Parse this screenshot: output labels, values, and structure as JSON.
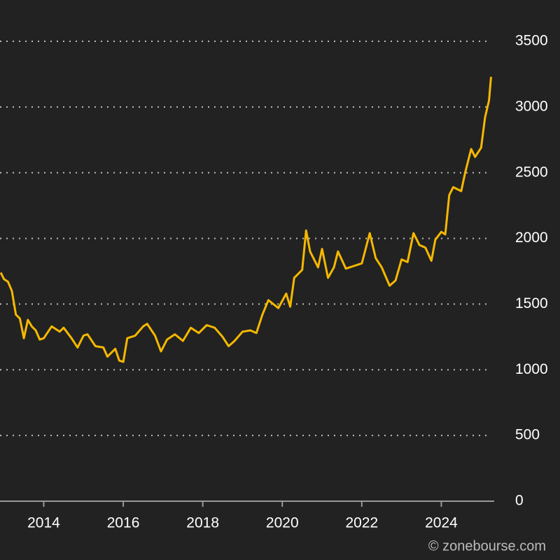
{
  "chart_data": {
    "type": "line",
    "source": "© zonebourse.com",
    "color": "#f5b800",
    "x": [
      2012.92,
      2013.0,
      2013.1,
      2013.2,
      2013.3,
      2013.4,
      2013.5,
      2013.6,
      2013.7,
      2013.8,
      2013.9,
      2014.0,
      2014.2,
      2014.4,
      2014.5,
      2014.7,
      2014.85,
      2015.0,
      2015.1,
      2015.3,
      2015.5,
      2015.6,
      2015.8,
      2015.9,
      2016.0,
      2016.1,
      2016.3,
      2016.5,
      2016.6,
      2016.8,
      2016.95,
      2017.1,
      2017.3,
      2017.5,
      2017.7,
      2017.9,
      2018.1,
      2018.3,
      2018.5,
      2018.65,
      2018.8,
      2019.0,
      2019.2,
      2019.35,
      2019.5,
      2019.65,
      2019.9,
      2020.1,
      2020.2,
      2020.3,
      2020.5,
      2020.6,
      2020.7,
      2020.9,
      2021.0,
      2021.15,
      2021.3,
      2021.4,
      2021.6,
      2021.8,
      2022.0,
      2022.2,
      2022.35,
      2022.5,
      2022.7,
      2022.85,
      2023.0,
      2023.15,
      2023.3,
      2023.45,
      2023.6,
      2023.75,
      2023.85,
      2024.0,
      2024.1,
      2024.2,
      2024.3,
      2024.5,
      2024.6,
      2024.75,
      2024.85,
      2025.0,
      2025.1,
      2025.2,
      2025.25
    ],
    "values": [
      1740,
      1690,
      1670,
      1600,
      1420,
      1390,
      1240,
      1380,
      1330,
      1300,
      1230,
      1240,
      1330,
      1290,
      1320,
      1240,
      1170,
      1260,
      1270,
      1180,
      1170,
      1100,
      1160,
      1070,
      1060,
      1240,
      1260,
      1330,
      1350,
      1260,
      1140,
      1230,
      1270,
      1220,
      1320,
      1280,
      1340,
      1320,
      1250,
      1180,
      1220,
      1290,
      1300,
      1280,
      1420,
      1530,
      1470,
      1580,
      1480,
      1700,
      1760,
      2060,
      1900,
      1780,
      1920,
      1700,
      1780,
      1900,
      1770,
      1790,
      1810,
      2040,
      1850,
      1780,
      1640,
      1680,
      1840,
      1820,
      2040,
      1950,
      1930,
      1830,
      1990,
      2050,
      2030,
      2330,
      2390,
      2360,
      2500,
      2680,
      2620,
      2690,
      2920,
      3050,
      3230
    ],
    "xlim": [
      2012.9,
      2025.33
    ],
    "xticks": [
      2014,
      2016,
      2018,
      2020,
      2022,
      2024
    ],
    "ylim": [
      0,
      3500
    ],
    "yticks": [
      0,
      500,
      1000,
      1500,
      2000,
      2500,
      3000,
      3500
    ],
    "grid": true
  }
}
